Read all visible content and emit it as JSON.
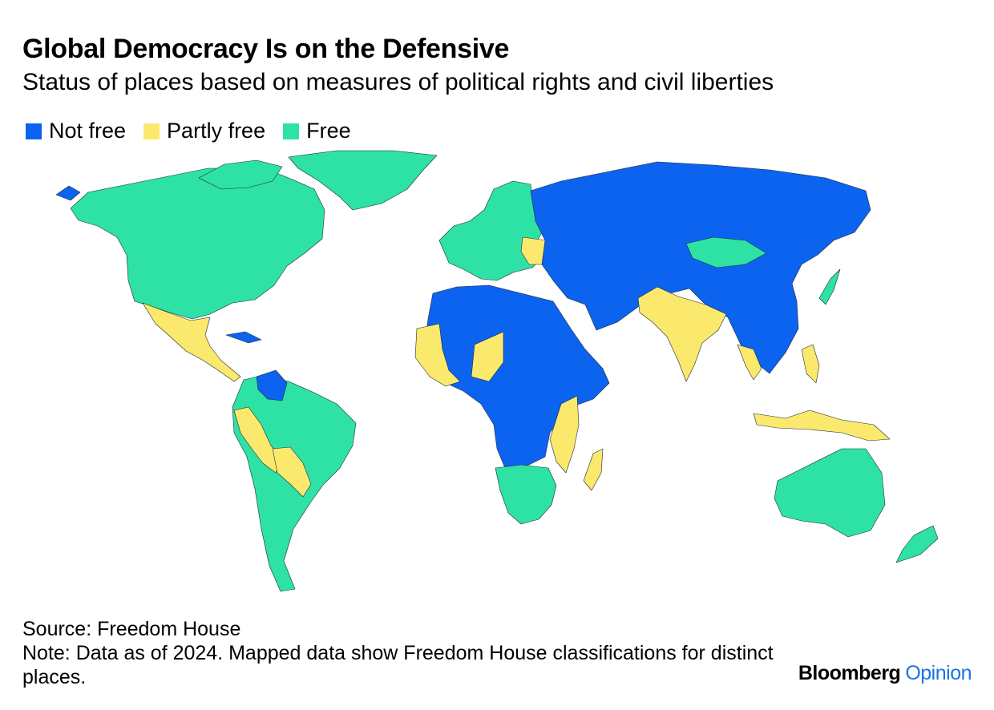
{
  "title": "Global Democracy Is on the Defensive",
  "subtitle": "Status of places based on measures of political rights and civil liberties",
  "legend": [
    {
      "label": "Not free",
      "color": "#0b63ef"
    },
    {
      "label": "Partly free",
      "color": "#fae96d"
    },
    {
      "label": "Free",
      "color": "#2ee2a5"
    }
  ],
  "source": "Source: Freedom House",
  "note": "Note: Data as of 2024. Mapped data show Freedom House classifications for distinct places.",
  "branding": {
    "brand": "Bloomberg",
    "section": "Opinion",
    "section_color": "#1a73e8"
  }
}
